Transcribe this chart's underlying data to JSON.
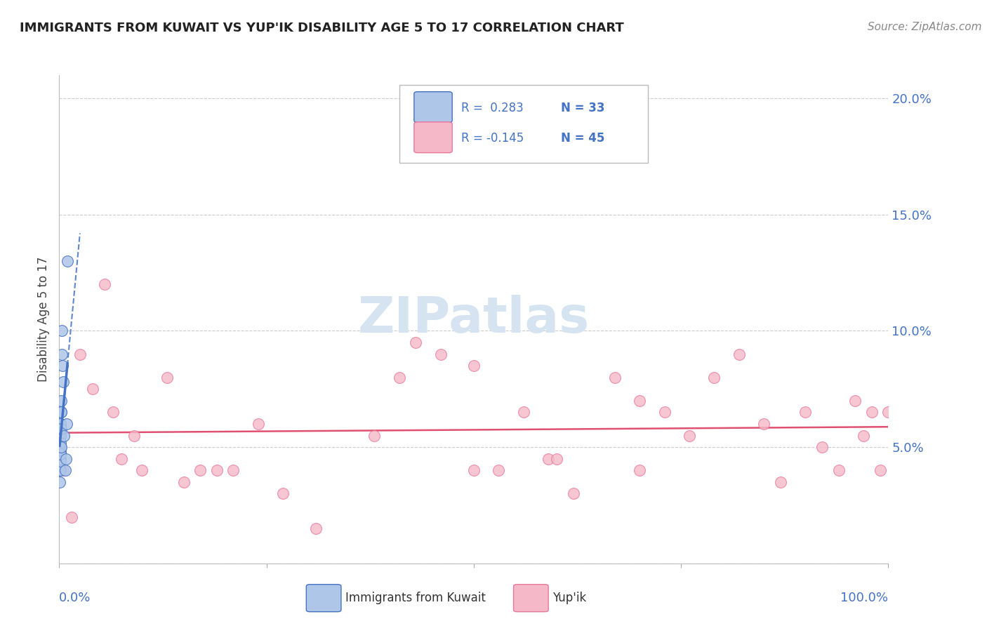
{
  "title": "IMMIGRANTS FROM KUWAIT VS YUP'IK DISABILITY AGE 5 TO 17 CORRELATION CHART",
  "source": "Source: ZipAtlas.com",
  "ylabel": "Disability Age 5 to 17",
  "y_ticks": [
    0.0,
    0.05,
    0.1,
    0.15,
    0.2
  ],
  "y_tick_labels": [
    "",
    "5.0%",
    "10.0%",
    "15.0%",
    "20.0%"
  ],
  "legend_r1": "R =  0.283",
  "legend_n1": "N = 33",
  "legend_r2": "R = -0.145",
  "legend_n2": "N = 45",
  "blue_series_label": "Immigrants from Kuwait",
  "pink_series_label": "Yup'ik",
  "blue_fill_color": "#aec6e8",
  "blue_edge_color": "#4472c4",
  "pink_fill_color": "#f5b8c8",
  "pink_edge_color": "#e8789a",
  "blue_trend_color": "#4472c4",
  "pink_trend_color": "#e05070",
  "watermark_color": "#d5e4f0",
  "tick_label_color": "#4472c4",
  "blue_x": [
    0.0005,
    0.0006,
    0.0007,
    0.0007,
    0.0008,
    0.0009,
    0.001,
    0.001,
    0.001,
    0.001,
    0.001,
    0.001,
    0.0012,
    0.0013,
    0.0014,
    0.0015,
    0.0016,
    0.0017,
    0.0018,
    0.0019,
    0.002,
    0.002,
    0.0022,
    0.0025,
    0.003,
    0.0035,
    0.004,
    0.005,
    0.006,
    0.007,
    0.008,
    0.009,
    0.01
  ],
  "blue_y": [
    0.035,
    0.04,
    0.042,
    0.05,
    0.053,
    0.055,
    0.04,
    0.045,
    0.048,
    0.05,
    0.055,
    0.06,
    0.044,
    0.05,
    0.055,
    0.058,
    0.047,
    0.052,
    0.06,
    0.065,
    0.05,
    0.058,
    0.065,
    0.07,
    0.09,
    0.1,
    0.085,
    0.078,
    0.055,
    0.04,
    0.045,
    0.06,
    0.13
  ],
  "pink_x": [
    0.005,
    0.015,
    0.025,
    0.04,
    0.055,
    0.065,
    0.075,
    0.09,
    0.1,
    0.13,
    0.15,
    0.17,
    0.19,
    0.21,
    0.24,
    0.27,
    0.31,
    0.38,
    0.41,
    0.43,
    0.46,
    0.5,
    0.53,
    0.56,
    0.59,
    0.62,
    0.67,
    0.7,
    0.73,
    0.76,
    0.79,
    0.82,
    0.85,
    0.87,
    0.9,
    0.92,
    0.94,
    0.96,
    0.97,
    0.98,
    0.99,
    1.0,
    0.5,
    0.6,
    0.7
  ],
  "pink_y": [
    0.04,
    0.02,
    0.09,
    0.075,
    0.12,
    0.065,
    0.045,
    0.055,
    0.04,
    0.08,
    0.035,
    0.04,
    0.04,
    0.04,
    0.06,
    0.03,
    0.015,
    0.055,
    0.08,
    0.095,
    0.09,
    0.085,
    0.04,
    0.065,
    0.045,
    0.03,
    0.08,
    0.07,
    0.065,
    0.055,
    0.08,
    0.09,
    0.06,
    0.035,
    0.065,
    0.05,
    0.04,
    0.07,
    0.055,
    0.065,
    0.04,
    0.065,
    0.04,
    0.045,
    0.04
  ],
  "xlim": [
    0.0,
    1.0
  ],
  "ylim": [
    0.0,
    0.21
  ],
  "background_color": "#ffffff",
  "grid_color": "#cccccc"
}
